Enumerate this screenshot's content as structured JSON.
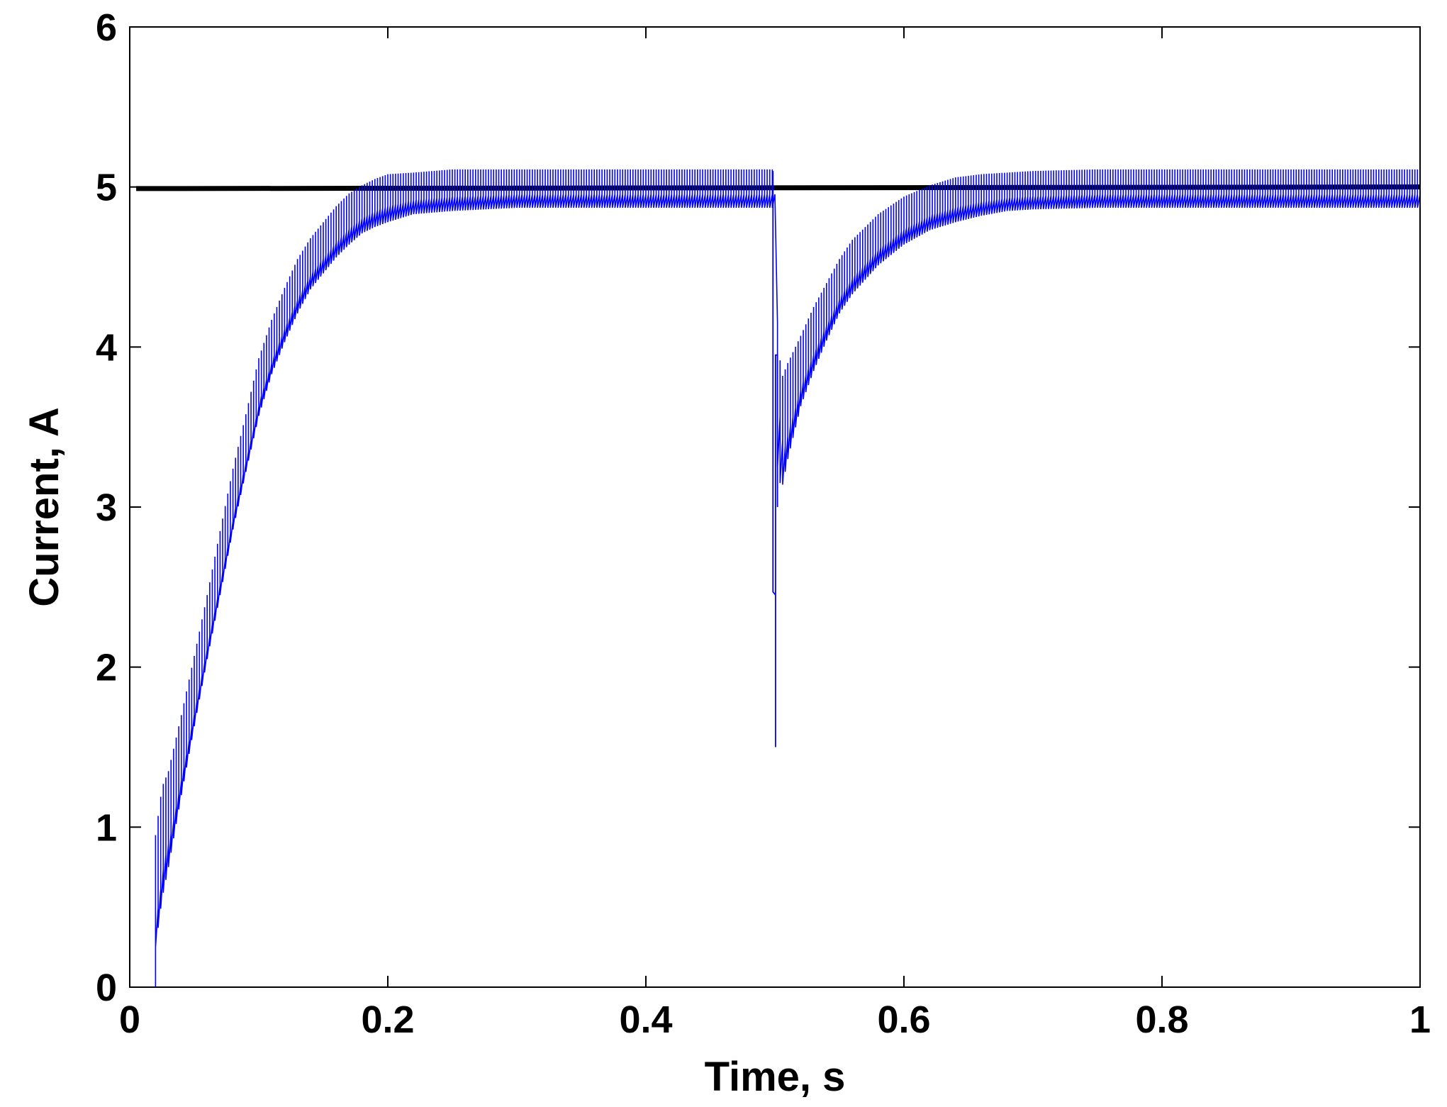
{
  "chart_data": {
    "type": "line",
    "xlabel": "Time, s",
    "ylabel": "Current, A",
    "xlim": [
      0,
      1
    ],
    "ylim": [
      0,
      6
    ],
    "x_ticks": [
      0,
      0.2,
      0.4,
      0.6,
      0.8,
      1
    ],
    "x_tick_labels": [
      "0",
      "0.2",
      "0.4",
      "0.6",
      "0.8",
      "1"
    ],
    "y_ticks": [
      0,
      1,
      2,
      3,
      4,
      5,
      6
    ],
    "y_tick_labels": [
      "0",
      "1",
      "2",
      "3",
      "4",
      "5",
      "6"
    ],
    "grid": false,
    "legend": "none",
    "series": [
      {
        "key": "reference",
        "color": "#000000",
        "style": "thick-solid",
        "x": [
          0.005,
          1.0
        ],
        "y": [
          4.99,
          5.0
        ]
      },
      {
        "key": "measured",
        "color": "#0000ff",
        "style": "thin-ripple",
        "x": [
          0,
          0.018,
          0.02,
          0.025,
          0.03,
          0.04,
          0.05,
          0.06,
          0.07,
          0.08,
          0.09,
          0.1,
          0.11,
          0.12,
          0.13,
          0.14,
          0.15,
          0.16,
          0.17,
          0.18,
          0.19,
          0.2,
          0.22,
          0.25,
          0.3,
          0.35,
          0.4,
          0.45,
          0.499,
          0.5,
          0.501,
          0.502,
          0.505,
          0.51,
          0.52,
          0.53,
          0.54,
          0.55,
          0.56,
          0.58,
          0.6,
          0.62,
          0.64,
          0.66,
          0.68,
          0.7,
          0.75,
          0.8,
          0.9,
          1.0
        ],
        "y": [
          0,
          0,
          0.6,
          0.9,
          1.05,
          1.45,
          1.85,
          2.25,
          2.65,
          3.05,
          3.4,
          3.75,
          4.0,
          4.2,
          4.38,
          4.52,
          4.62,
          4.72,
          4.8,
          4.86,
          4.9,
          4.93,
          4.96,
          4.98,
          4.99,
          4.99,
          4.99,
          4.99,
          4.99,
          2.45,
          1.5,
          3.7,
          3.45,
          3.6,
          3.85,
          4.05,
          4.22,
          4.38,
          4.5,
          4.67,
          4.79,
          4.87,
          4.92,
          4.95,
          4.97,
          4.98,
          4.99,
          4.99,
          4.99,
          4.99
        ],
        "ripple": [
          0,
          0,
          0.35,
          0.35,
          0.3,
          0.25,
          0.22,
          0.2,
          0.2,
          0.19,
          0.18,
          0.18,
          0.17,
          0.17,
          0.17,
          0.16,
          0.16,
          0.16,
          0.16,
          0.15,
          0.15,
          0.15,
          0.13,
          0.13,
          0.12,
          0.12,
          0.12,
          0.12,
          0.12,
          0,
          0,
          0.45,
          0.35,
          0.3,
          0.22,
          0.2,
          0.18,
          0.17,
          0.17,
          0.16,
          0.15,
          0.14,
          0.14,
          0.13,
          0.12,
          0.12,
          0.12,
          0.12,
          0.12,
          0.12
        ]
      }
    ]
  }
}
